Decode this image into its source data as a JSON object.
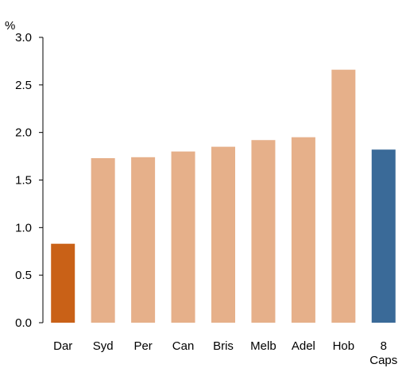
{
  "chart_data": {
    "type": "bar",
    "title": "",
    "xlabel": "",
    "ylabel": "%",
    "ylim": [
      0,
      3.0
    ],
    "yticks": [
      "0.0",
      "0.5",
      "1.0",
      "1.5",
      "2.0",
      "2.5",
      "3.0"
    ],
    "grid": false,
    "categories": [
      "Dar",
      "Syd",
      "Per",
      "Can",
      "Bris",
      "Melb",
      "Adel",
      "Hob",
      "8 Caps"
    ],
    "values": [
      0.83,
      1.73,
      1.74,
      1.8,
      1.85,
      1.92,
      1.95,
      2.66,
      1.82
    ],
    "colors": [
      "#c96117",
      "#e6b08a",
      "#e6b08a",
      "#e6b08a",
      "#e6b08a",
      "#e6b08a",
      "#e6b08a",
      "#e6b08a",
      "#3a6a98"
    ]
  }
}
